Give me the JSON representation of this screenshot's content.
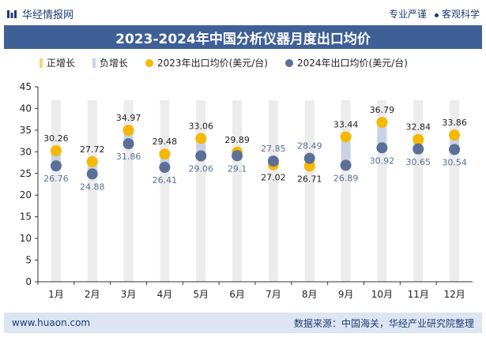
{
  "header": {
    "brand_name": "华经情报网",
    "tag_left": "专业严谨",
    "tag_right": "客观科学"
  },
  "footer": {
    "website": "www.huaon.com",
    "source": "数据来源：中国海关，华经产业研究院整理"
  },
  "colors": {
    "title_bg": "#3f5f97",
    "series_2023": "#f5b800",
    "series_2024": "#5b6f97",
    "bar_positive": "#ececec",
    "bar_negative": "#c9d3e6"
  },
  "chart_data": {
    "type": "line",
    "title": "2023-2024年中国分析仪器月度出口均价",
    "categories": [
      "1月",
      "2月",
      "3月",
      "4月",
      "5月",
      "6月",
      "7月",
      "8月",
      "9月",
      "10月",
      "11月",
      "12月"
    ],
    "legend": [
      "正增长",
      "负增长",
      "2023年出口均价(美元/台)",
      "2024年出口均价(美元/台)"
    ],
    "series": [
      {
        "name": "2023年出口均价(美元/台)",
        "values": [
          30.26,
          27.72,
          34.97,
          29.48,
          33.06,
          29.89,
          27.02,
          26.71,
          33.44,
          36.79,
          32.84,
          33.86
        ]
      },
      {
        "name": "2024年出口均价(美元/台)",
        "values": [
          26.76,
          24.88,
          31.86,
          26.41,
          29.06,
          29.1,
          27.85,
          28.49,
          26.89,
          30.92,
          30.65,
          30.54
        ]
      }
    ],
    "ylim": [
      0,
      45
    ],
    "yticks": [
      0,
      5,
      10,
      15,
      20,
      25,
      30,
      35,
      40,
      45
    ],
    "grid": false,
    "legend_position": "top"
  }
}
